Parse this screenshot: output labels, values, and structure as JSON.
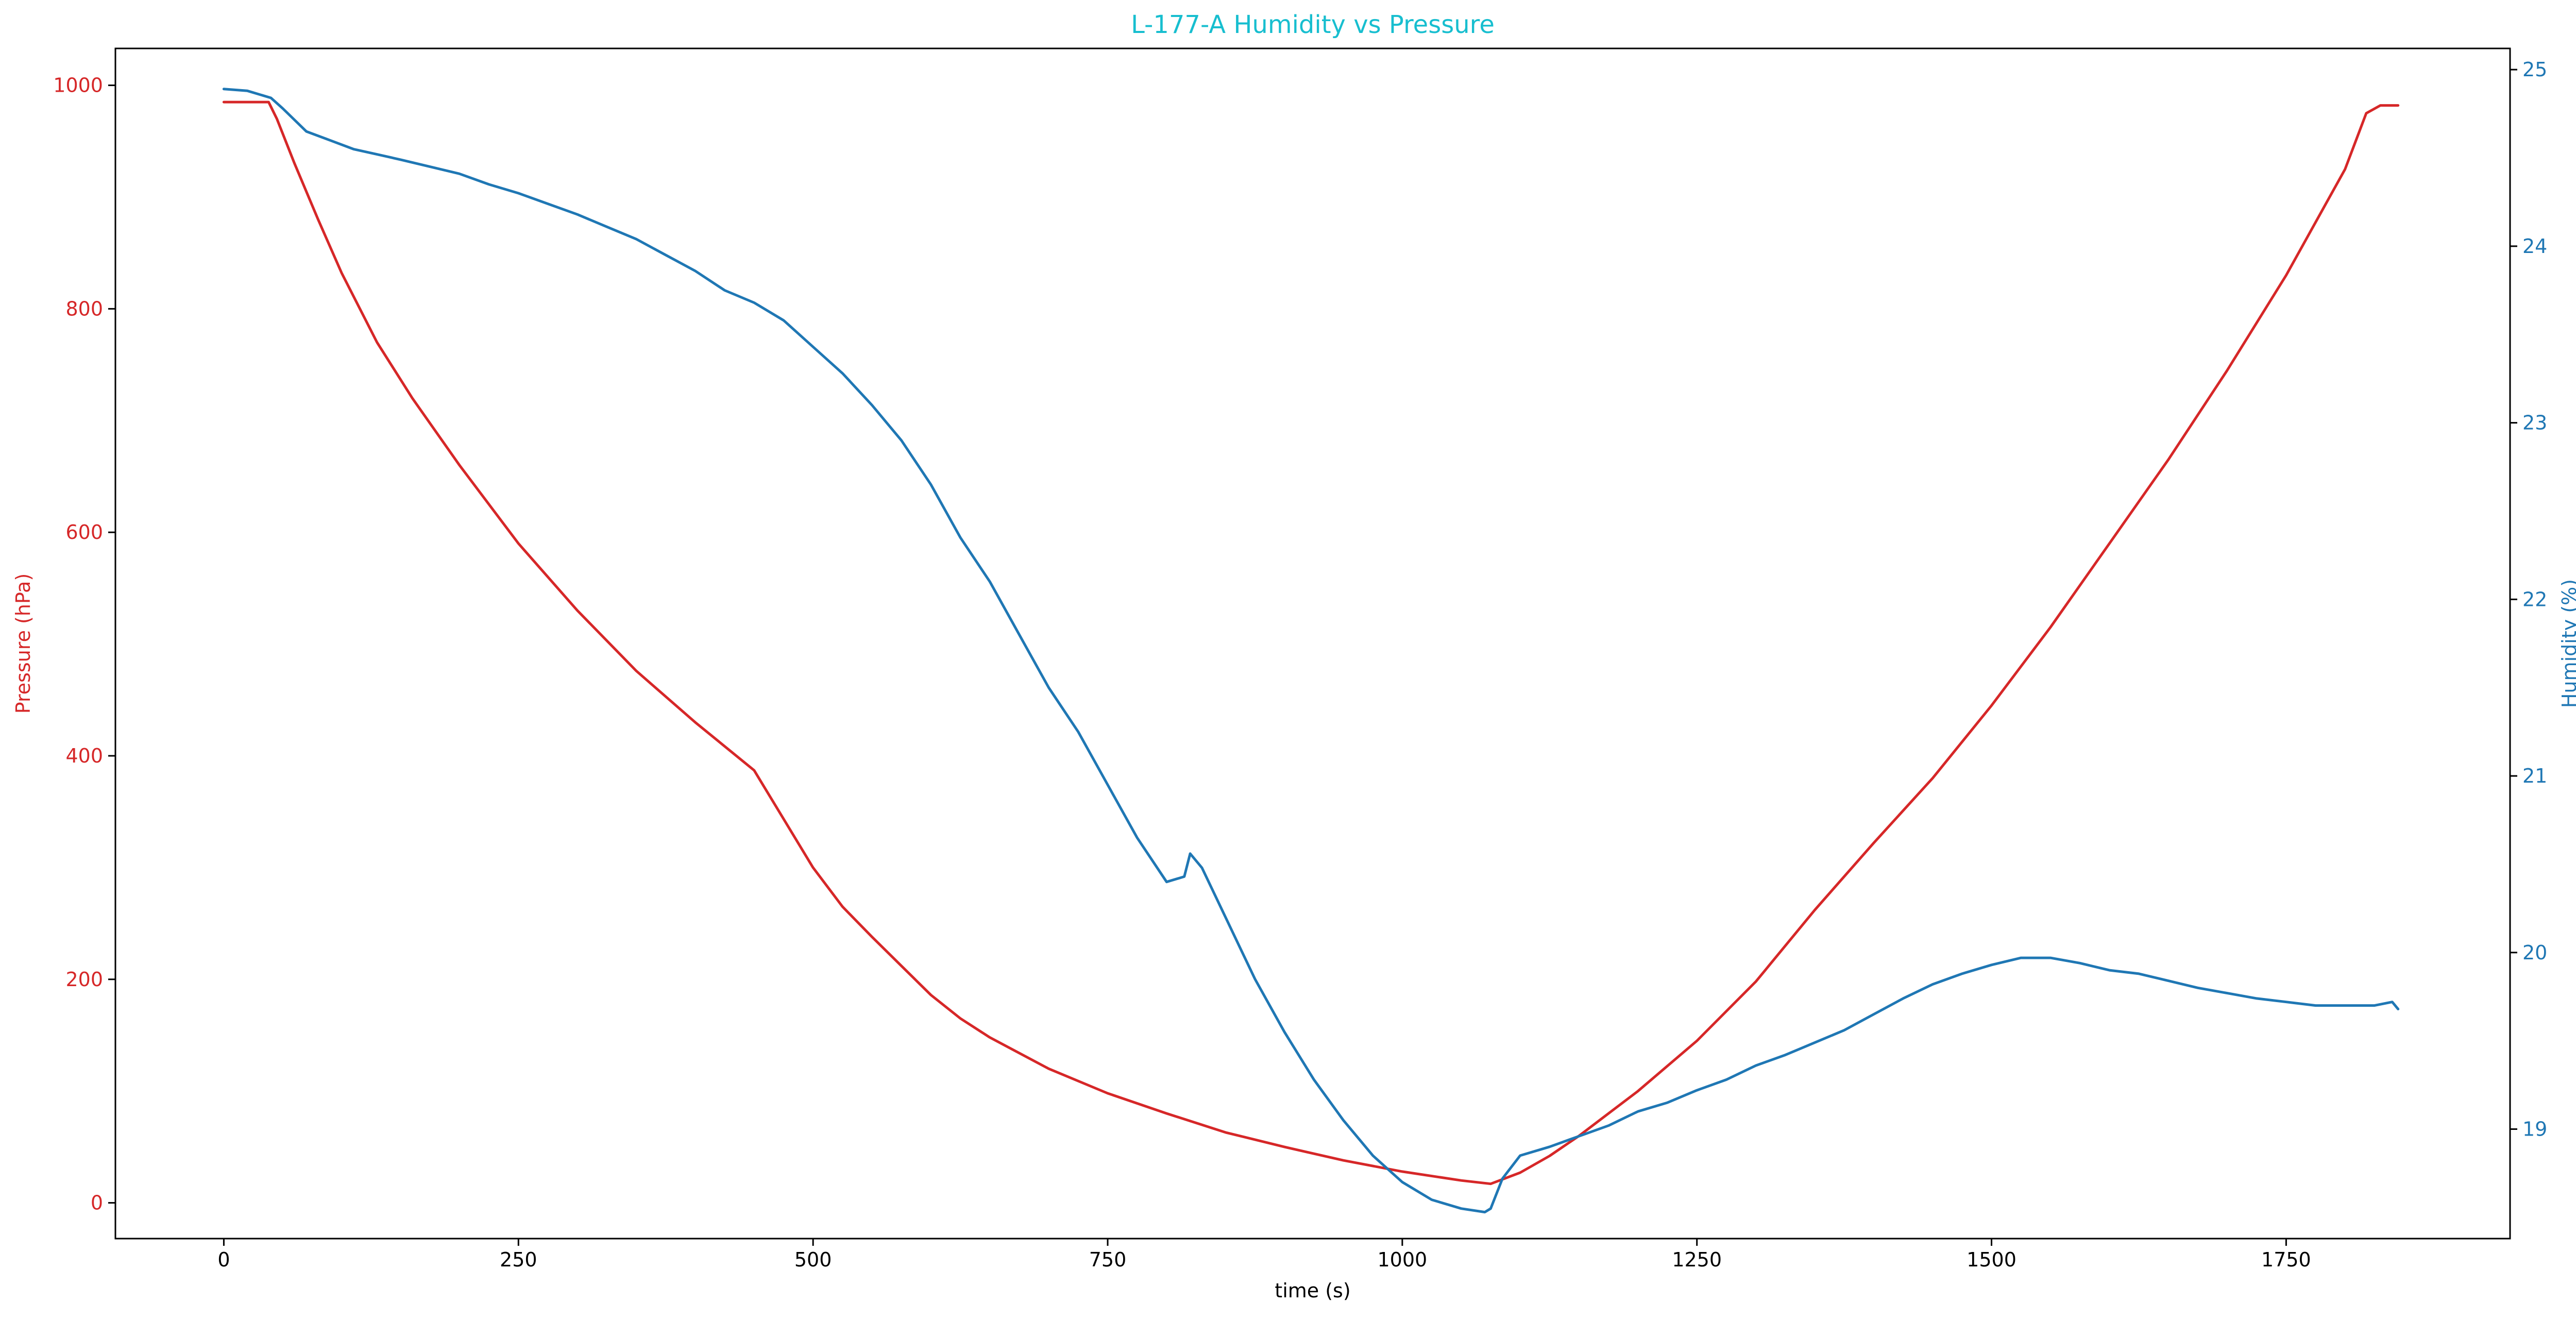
{
  "chart_data": {
    "type": "line",
    "title": "L-177-A Humidity vs Pressure",
    "xlabel": "time (s)",
    "ylabel_left": "Pressure (hPa)",
    "ylabel_right": "Humidity (%)",
    "xlim": [
      -92,
      1940
    ],
    "ylim_left": [
      -32,
      1033
    ],
    "ylim_right": [
      18.38,
      25.12
    ],
    "x_ticks": [
      0,
      250,
      500,
      750,
      1000,
      1250,
      1500,
      1750
    ],
    "y_left_ticks": [
      0,
      200,
      400,
      600,
      800,
      1000
    ],
    "y_right_ticks": [
      19,
      20,
      21,
      22,
      23,
      24,
      25
    ],
    "grid": false,
    "legend": "none",
    "colors": {
      "title": "#17becf",
      "pressure": "#d62728",
      "humidity": "#1f77b4",
      "axis": "#000000"
    },
    "series": [
      {
        "name": "Pressure (hPa)",
        "axis": "left",
        "color": "#d62728",
        "x": [
          0,
          20,
          38,
          45,
          60,
          80,
          100,
          130,
          160,
          200,
          250,
          300,
          350,
          400,
          450,
          500,
          525,
          550,
          575,
          600,
          625,
          650,
          700,
          750,
          800,
          850,
          900,
          950,
          1000,
          1050,
          1075,
          1100,
          1125,
          1150,
          1175,
          1200,
          1250,
          1300,
          1350,
          1400,
          1450,
          1500,
          1550,
          1600,
          1650,
          1700,
          1750,
          1800,
          1818,
          1830,
          1845
        ],
        "values": [
          985,
          985,
          985,
          970,
          930,
          880,
          832,
          770,
          720,
          660,
          590,
          530,
          476,
          430,
          387,
          300,
          265,
          238,
          212,
          186,
          165,
          148,
          120,
          98,
          80,
          63,
          50,
          38,
          28,
          20,
          17,
          27,
          42,
          60,
          80,
          100,
          145,
          198,
          262,
          322,
          380,
          445,
          515,
          590,
          665,
          745,
          830,
          925,
          975,
          982,
          982
        ]
      },
      {
        "name": "Humidity (%)",
        "axis": "right",
        "color": "#1f77b4",
        "x": [
          0,
          20,
          40,
          50,
          70,
          90,
          110,
          130,
          150,
          175,
          200,
          225,
          250,
          275,
          300,
          325,
          350,
          375,
          400,
          425,
          450,
          475,
          500,
          525,
          550,
          575,
          600,
          625,
          650,
          675,
          700,
          725,
          750,
          775,
          800,
          815,
          820,
          830,
          850,
          875,
          900,
          925,
          950,
          975,
          1000,
          1025,
          1050,
          1070,
          1075,
          1085,
          1100,
          1125,
          1150,
          1175,
          1200,
          1225,
          1250,
          1275,
          1300,
          1325,
          1350,
          1375,
          1400,
          1425,
          1450,
          1475,
          1500,
          1525,
          1550,
          1575,
          1600,
          1625,
          1650,
          1675,
          1700,
          1725,
          1750,
          1775,
          1800,
          1825,
          1840,
          1845
        ],
        "values": [
          24.89,
          24.88,
          24.84,
          24.78,
          24.65,
          24.6,
          24.55,
          24.52,
          24.49,
          24.45,
          24.41,
          24.35,
          24.3,
          24.24,
          24.18,
          24.11,
          24.04,
          23.95,
          23.86,
          23.75,
          23.68,
          23.58,
          23.43,
          23.28,
          23.1,
          22.9,
          22.65,
          22.35,
          22.1,
          21.8,
          21.5,
          21.25,
          20.95,
          20.65,
          20.4,
          20.43,
          20.56,
          20.48,
          20.2,
          19.85,
          19.55,
          19.28,
          19.05,
          18.85,
          18.7,
          18.6,
          18.55,
          18.53,
          18.55,
          18.72,
          18.85,
          18.9,
          18.96,
          19.02,
          19.1,
          19.15,
          19.22,
          19.28,
          19.36,
          19.42,
          19.49,
          19.56,
          19.65,
          19.74,
          19.82,
          19.88,
          19.93,
          19.97,
          19.97,
          19.94,
          19.9,
          19.88,
          19.84,
          19.8,
          19.77,
          19.74,
          19.72,
          19.7,
          19.7,
          19.7,
          19.72,
          19.68
        ]
      }
    ]
  }
}
